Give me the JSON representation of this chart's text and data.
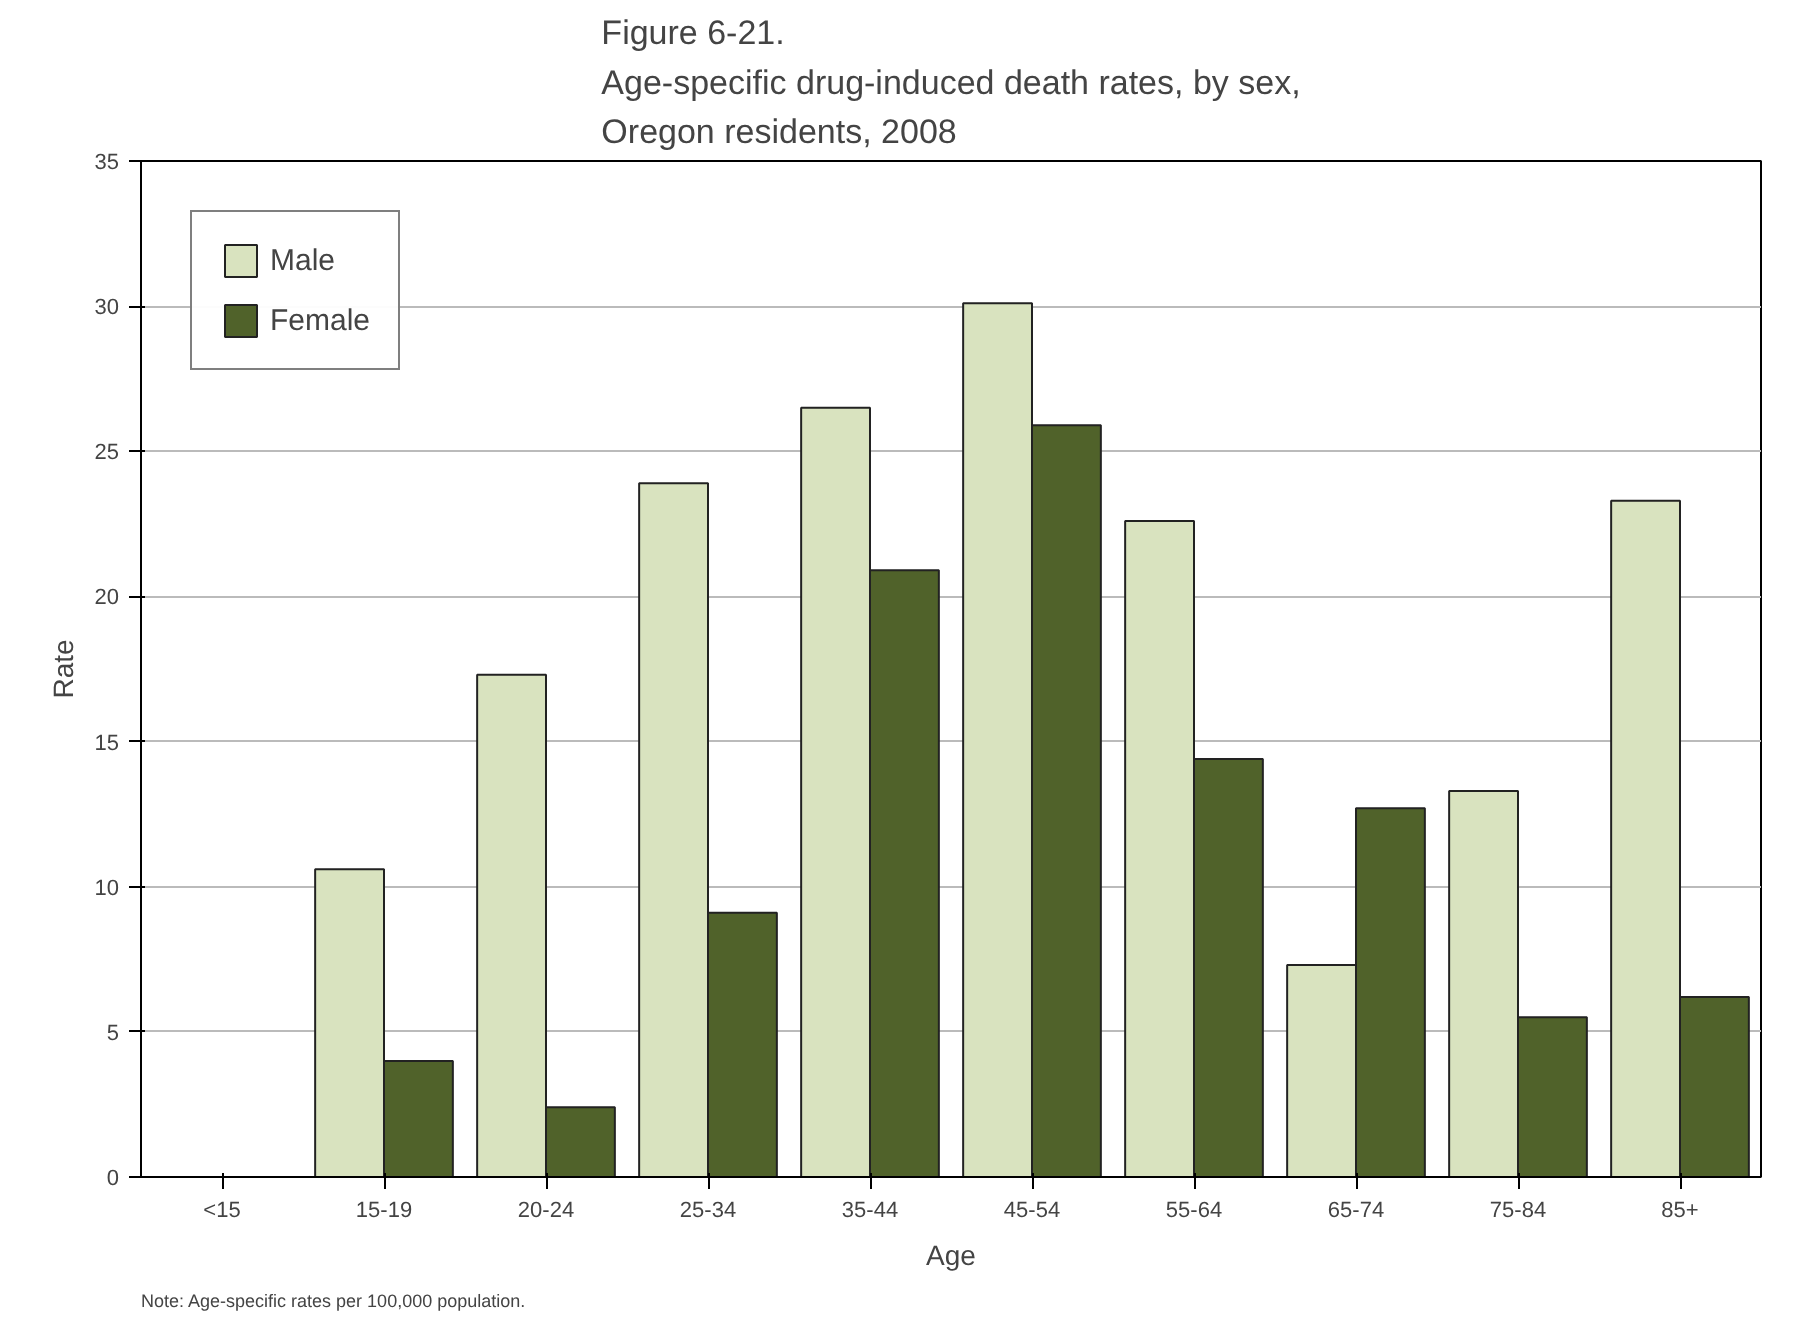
{
  "chart_data": {
    "type": "bar",
    "title": "Figure 6-21.\nAge-specific drug-induced death rates, by sex,\nOregon residents, 2008",
    "xlabel": "Age",
    "ylabel": "Rate",
    "categories": [
      "<15",
      "15-19",
      "20-24",
      "25-34",
      "35-44",
      "45-54",
      "55-64",
      "65-74",
      "75-84",
      "85+"
    ],
    "series": [
      {
        "name": "Male",
        "color": "#d9e3bf",
        "values": [
          null,
          10.6,
          17.3,
          23.9,
          26.5,
          30.1,
          22.6,
          7.3,
          13.3,
          23.3
        ]
      },
      {
        "name": "Female",
        "color": "#50622a",
        "values": [
          null,
          4.0,
          2.4,
          9.1,
          20.9,
          25.9,
          14.4,
          12.7,
          5.5,
          6.2
        ]
      }
    ],
    "ylim": [
      0,
      35
    ],
    "yticks": [
      0,
      5,
      10,
      15,
      20,
      25,
      30,
      35
    ],
    "grid": "y",
    "legend": "top left",
    "annotations": [
      "Note: Age-specific rates per 100,000 population."
    ]
  }
}
